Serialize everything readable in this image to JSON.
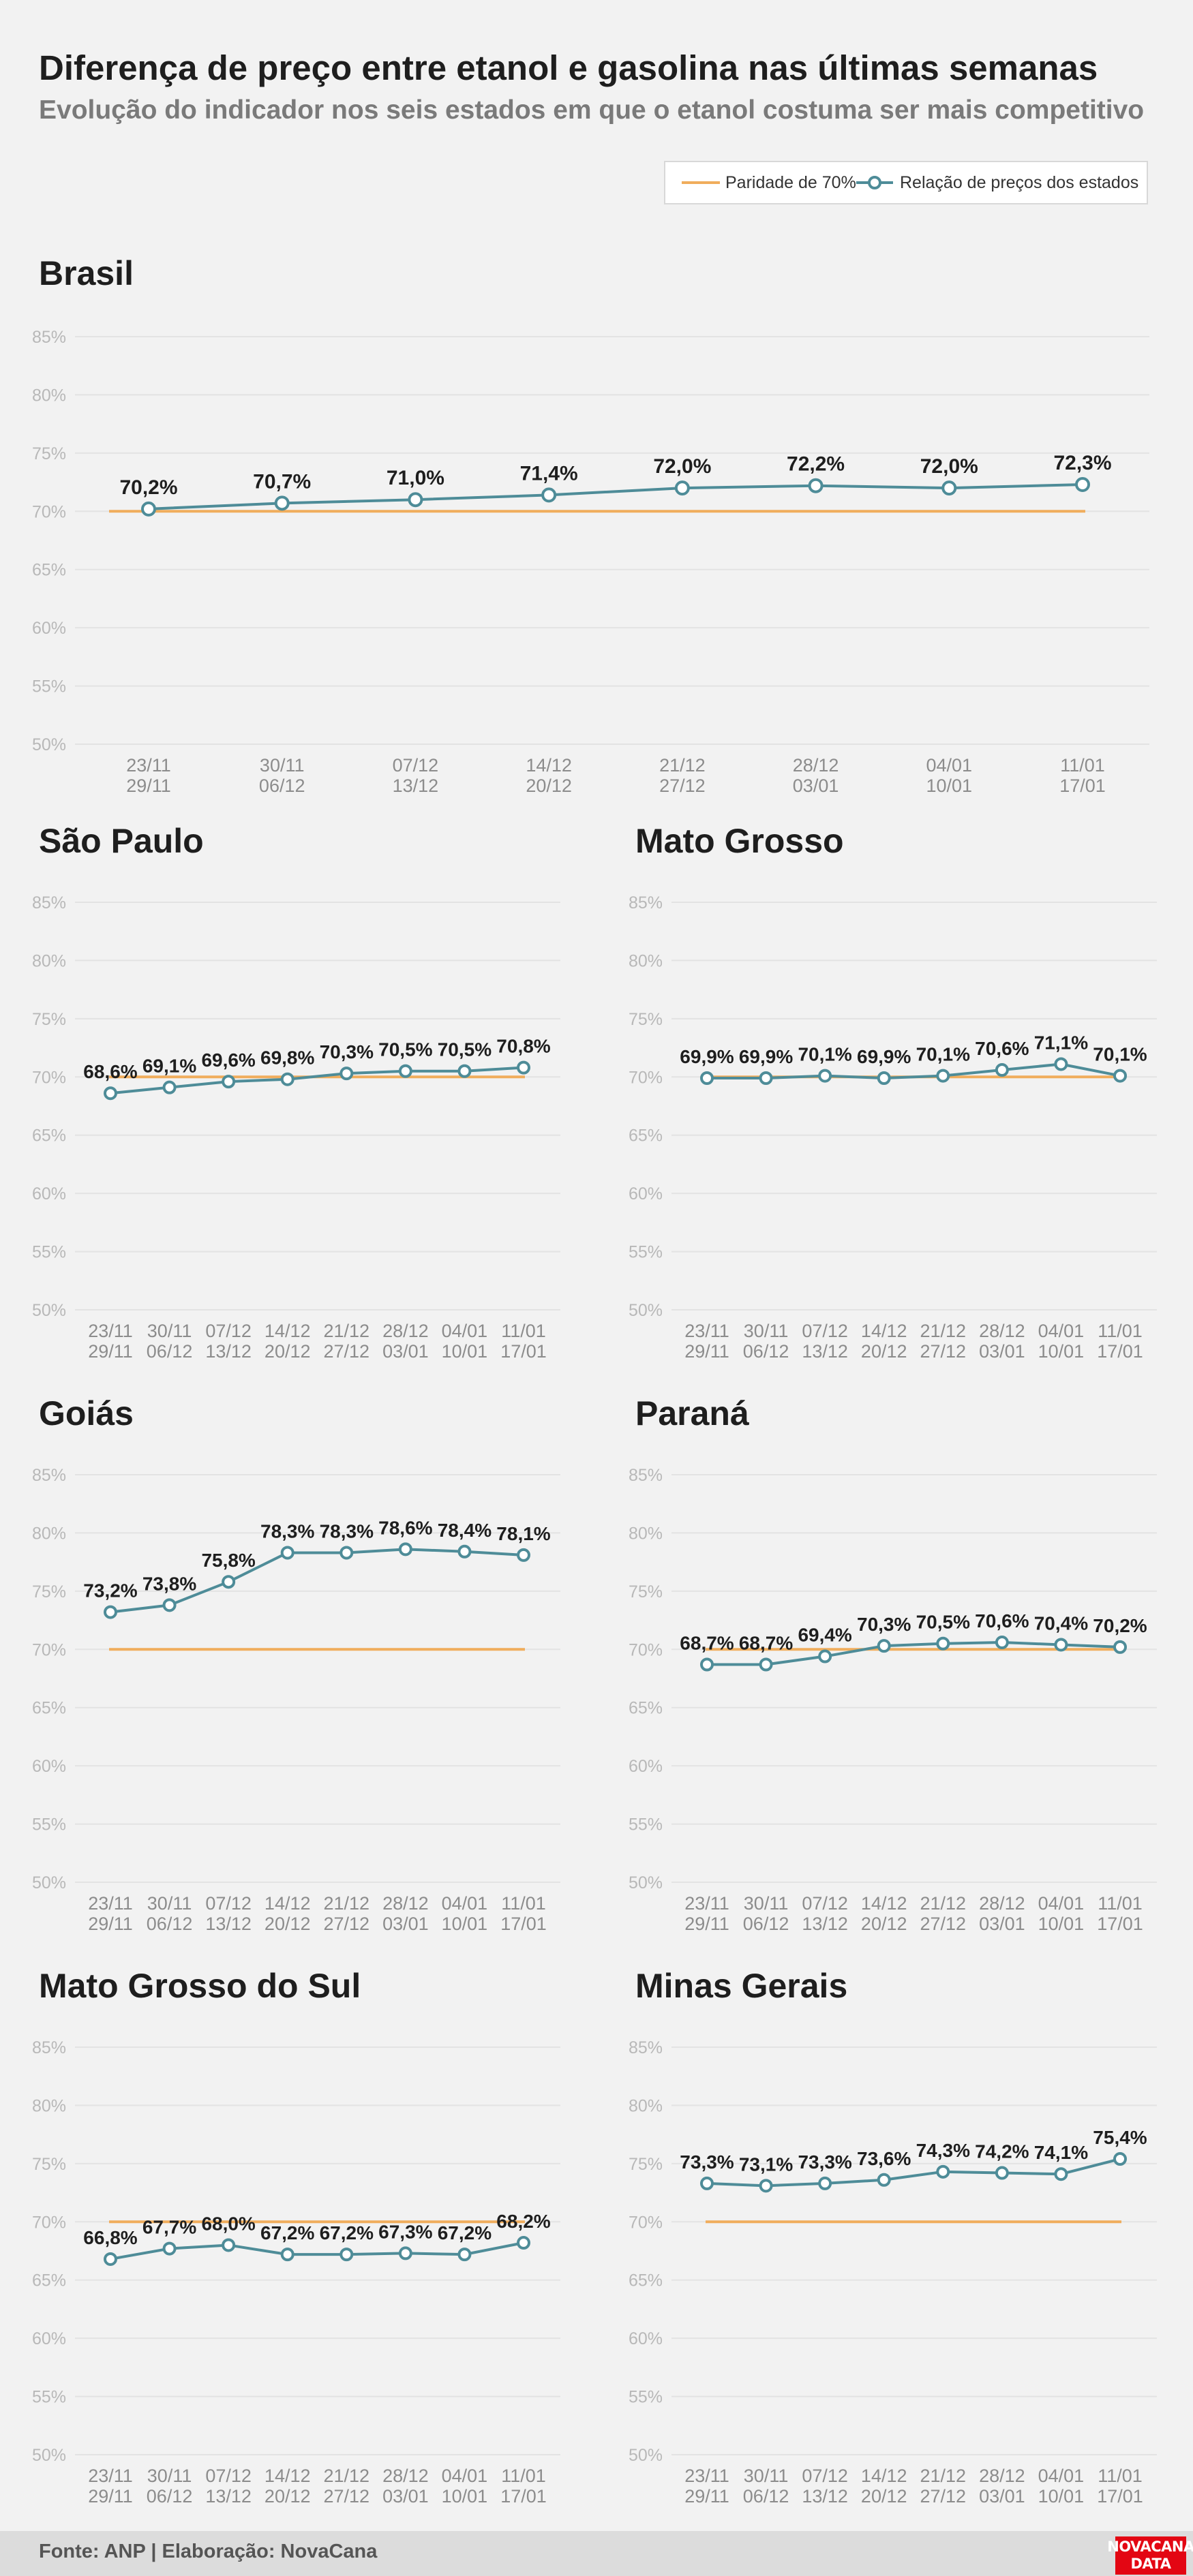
{
  "title": "Diferença de preço entre etanol e gasolina nas últimas semanas",
  "subtitle": "Evolução do indicador nos seis estados em que o etanol costuma ser mais competitivo",
  "legend": {
    "parity_label": "Paridade de 70%",
    "ratio_label": "Relação de preços dos estados"
  },
  "colors": {
    "parity": "#f0ad5c",
    "ratio": "#4e8c98",
    "grid": "#e3e3e3",
    "logo": "#e30613"
  },
  "footer": {
    "source": "Fonte: ANP | Elaboração: NovaCana",
    "logo_line1": "NOVACANA",
    "logo_line2": "DATA"
  },
  "chart_data": [
    {
      "title": "Brasil",
      "type": "line",
      "categories": [
        [
          "23/11",
          "29/11"
        ],
        [
          "30/11",
          "06/12"
        ],
        [
          "07/12",
          "13/12"
        ],
        [
          "14/12",
          "20/12"
        ],
        [
          "21/12",
          "27/12"
        ],
        [
          "28/12",
          "03/01"
        ],
        [
          "04/01",
          "10/01"
        ],
        [
          "11/01",
          "17/01"
        ]
      ],
      "series": [
        {
          "name": "Paridade de 70%",
          "values": [
            70,
            70,
            70,
            70,
            70,
            70,
            70,
            70
          ]
        },
        {
          "name": "Relação de preços dos estados",
          "values": [
            70.2,
            70.7,
            71.0,
            71.4,
            72.0,
            72.2,
            72.0,
            72.3
          ],
          "labels": [
            "70,2%",
            "70,7%",
            "71,0%",
            "71,4%",
            "72,0%",
            "72,2%",
            "72,0%",
            "72,3%"
          ]
        }
      ],
      "yticks": [
        "85%",
        "80%",
        "75%",
        "70%",
        "65%",
        "60%",
        "55%",
        "50%"
      ],
      "ylim": [
        50,
        85
      ]
    },
    {
      "title": "São Paulo",
      "type": "line",
      "categories": [
        [
          "23/11",
          "29/11"
        ],
        [
          "30/11",
          "06/12"
        ],
        [
          "07/12",
          "13/12"
        ],
        [
          "14/12",
          "20/12"
        ],
        [
          "21/12",
          "27/12"
        ],
        [
          "28/12",
          "03/01"
        ],
        [
          "04/01",
          "10/01"
        ],
        [
          "11/01",
          "17/01"
        ]
      ],
      "series": [
        {
          "name": "Paridade de 70%",
          "values": [
            70,
            70,
            70,
            70,
            70,
            70,
            70,
            70
          ]
        },
        {
          "name": "Relação de preços dos estados",
          "values": [
            68.6,
            69.1,
            69.6,
            69.8,
            70.3,
            70.5,
            70.5,
            70.8
          ],
          "labels": [
            "68,6%",
            "69,1%",
            "69,6%",
            "69,8%",
            "70,3%",
            "70,5%",
            "70,5%",
            "70,8%"
          ]
        }
      ],
      "yticks": [
        "85%",
        "80%",
        "75%",
        "70%",
        "65%",
        "60%",
        "55%",
        "50%"
      ],
      "ylim": [
        50,
        85
      ]
    },
    {
      "title": "Mato Grosso",
      "type": "line",
      "categories": [
        [
          "23/11",
          "29/11"
        ],
        [
          "30/11",
          "06/12"
        ],
        [
          "07/12",
          "13/12"
        ],
        [
          "14/12",
          "20/12"
        ],
        [
          "21/12",
          "27/12"
        ],
        [
          "28/12",
          "03/01"
        ],
        [
          "04/01",
          "10/01"
        ],
        [
          "11/01",
          "17/01"
        ]
      ],
      "series": [
        {
          "name": "Paridade de 70%",
          "values": [
            70,
            70,
            70,
            70,
            70,
            70,
            70,
            70
          ]
        },
        {
          "name": "Relação de preços dos estados",
          "values": [
            69.9,
            69.9,
            70.1,
            69.9,
            70.1,
            70.6,
            71.1,
            70.1
          ],
          "labels": [
            "69,9%",
            "69,9%",
            "70,1%",
            "69,9%",
            "70,1%",
            "70,6%",
            "71,1%",
            "70,1%"
          ]
        }
      ],
      "yticks": [
        "85%",
        "80%",
        "75%",
        "70%",
        "65%",
        "60%",
        "55%",
        "50%"
      ],
      "ylim": [
        50,
        85
      ]
    },
    {
      "title": "Goiás",
      "type": "line",
      "categories": [
        [
          "23/11",
          "29/11"
        ],
        [
          "30/11",
          "06/12"
        ],
        [
          "07/12",
          "13/12"
        ],
        [
          "14/12",
          "20/12"
        ],
        [
          "21/12",
          "27/12"
        ],
        [
          "28/12",
          "03/01"
        ],
        [
          "04/01",
          "10/01"
        ],
        [
          "11/01",
          "17/01"
        ]
      ],
      "series": [
        {
          "name": "Paridade de 70%",
          "values": [
            70,
            70,
            70,
            70,
            70,
            70,
            70,
            70
          ]
        },
        {
          "name": "Relação de preços dos estados",
          "values": [
            73.2,
            73.8,
            75.8,
            78.3,
            78.3,
            78.6,
            78.4,
            78.1
          ],
          "labels": [
            "73,2%",
            "73,8%",
            "75,8%",
            "78,3%",
            "78,3%",
            "78,6%",
            "78,4%",
            "78,1%"
          ]
        }
      ],
      "yticks": [
        "85%",
        "80%",
        "75%",
        "70%",
        "65%",
        "60%",
        "55%",
        "50%"
      ],
      "ylim": [
        50,
        85
      ]
    },
    {
      "title": "Paraná",
      "type": "line",
      "categories": [
        [
          "23/11",
          "29/11"
        ],
        [
          "30/11",
          "06/12"
        ],
        [
          "07/12",
          "13/12"
        ],
        [
          "14/12",
          "20/12"
        ],
        [
          "21/12",
          "27/12"
        ],
        [
          "28/12",
          "03/01"
        ],
        [
          "04/01",
          "10/01"
        ],
        [
          "11/01",
          "17/01"
        ]
      ],
      "series": [
        {
          "name": "Paridade de 70%",
          "values": [
            70,
            70,
            70,
            70,
            70,
            70,
            70,
            70
          ]
        },
        {
          "name": "Relação de preços dos estados",
          "values": [
            68.7,
            68.7,
            69.4,
            70.3,
            70.5,
            70.6,
            70.4,
            70.2
          ],
          "labels": [
            "68,7%",
            "68,7%",
            "69,4%",
            "70,3%",
            "70,5%",
            "70,6%",
            "70,4%",
            "70,2%"
          ]
        }
      ],
      "yticks": [
        "85%",
        "80%",
        "75%",
        "70%",
        "65%",
        "60%",
        "55%",
        "50%"
      ],
      "ylim": [
        50,
        85
      ]
    },
    {
      "title": "Mato Grosso do Sul",
      "type": "line",
      "categories": [
        [
          "23/11",
          "29/11"
        ],
        [
          "30/11",
          "06/12"
        ],
        [
          "07/12",
          "13/12"
        ],
        [
          "14/12",
          "20/12"
        ],
        [
          "21/12",
          "27/12"
        ],
        [
          "28/12",
          "03/01"
        ],
        [
          "04/01",
          "10/01"
        ],
        [
          "11/01",
          "17/01"
        ]
      ],
      "series": [
        {
          "name": "Paridade de 70%",
          "values": [
            70,
            70,
            70,
            70,
            70,
            70,
            70,
            70
          ]
        },
        {
          "name": "Relação de preços dos estados",
          "values": [
            66.8,
            67.7,
            68.0,
            67.2,
            67.2,
            67.3,
            67.2,
            68.2
          ],
          "labels": [
            "66,8%",
            "67,7%",
            "68,0%",
            "67,2%",
            "67,2%",
            "67,3%",
            "67,2%",
            "68,2%"
          ]
        }
      ],
      "yticks": [
        "85%",
        "80%",
        "75%",
        "70%",
        "65%",
        "60%",
        "55%",
        "50%"
      ],
      "ylim": [
        50,
        85
      ]
    },
    {
      "title": "Minas Gerais",
      "type": "line",
      "categories": [
        [
          "23/11",
          "29/11"
        ],
        [
          "30/11",
          "06/12"
        ],
        [
          "07/12",
          "13/12"
        ],
        [
          "14/12",
          "20/12"
        ],
        [
          "21/12",
          "27/12"
        ],
        [
          "28/12",
          "03/01"
        ],
        [
          "04/01",
          "10/01"
        ],
        [
          "11/01",
          "17/01"
        ]
      ],
      "series": [
        {
          "name": "Paridade de 70%",
          "values": [
            70,
            70,
            70,
            70,
            70,
            70,
            70,
            70
          ]
        },
        {
          "name": "Relação de preços dos estados",
          "values": [
            73.3,
            73.1,
            73.3,
            73.6,
            74.3,
            74.2,
            74.1,
            75.4
          ],
          "labels": [
            "73,3%",
            "73,1%",
            "73,3%",
            "73,6%",
            "74,3%",
            "74,2%",
            "74,1%",
            "75,4%"
          ]
        }
      ],
      "yticks": [
        "85%",
        "80%",
        "75%",
        "70%",
        "65%",
        "60%",
        "55%",
        "50%"
      ],
      "ylim": [
        50,
        85
      ]
    }
  ]
}
